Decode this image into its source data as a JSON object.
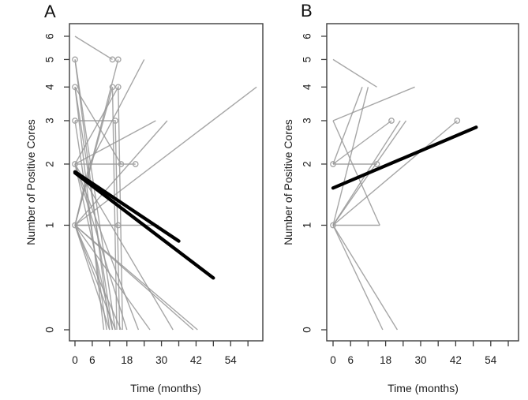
{
  "figure": {
    "background": "#ffffff",
    "colors": {
      "gray_line": "#969696",
      "marker": "#a3a3a3",
      "trend_black": "#000000",
      "axis": "#3d3d3d",
      "text": "#1c1c1c"
    },
    "x_axis": {
      "label": "Time (months)",
      "ticks": [
        0,
        6,
        12,
        18,
        24,
        30,
        36,
        42,
        48,
        54,
        60
      ],
      "labeled_ticks": [
        0,
        6,
        18,
        30,
        42,
        54
      ]
    },
    "y_axis": {
      "label": "Number of Positive Cores",
      "ticks": [
        0,
        1,
        2,
        3,
        4,
        5,
        6
      ],
      "scale": "log1p",
      "note": "tick spacing compressed toward top, log(y+1)"
    }
  },
  "chart_data": [
    {
      "panel": "A",
      "type": "line",
      "xlabel": "Time (months)",
      "ylabel": "Number of Positive Cores",
      "xlim": [
        0,
        63
      ],
      "ylim": [
        0,
        6
      ],
      "grid": false,
      "legend": "none",
      "gray_lines": [
        [
          [
            0,
            6
          ],
          [
            13,
            5
          ]
        ],
        [
          [
            0,
            1
          ],
          [
            15,
            5
          ]
        ],
        [
          [
            0,
            1
          ],
          [
            5,
            2
          ],
          [
            24,
            5
          ]
        ],
        [
          [
            0,
            5
          ],
          [
            12,
            0
          ]
        ],
        [
          [
            0,
            5
          ],
          [
            14,
            0
          ]
        ],
        [
          [
            0,
            1
          ],
          [
            13,
            4
          ],
          [
            14.5,
            0
          ]
        ],
        [
          [
            0,
            2
          ],
          [
            15,
            4
          ],
          [
            16.5,
            0
          ]
        ],
        [
          [
            0,
            4
          ],
          [
            10,
            0
          ]
        ],
        [
          [
            0,
            4
          ],
          [
            13,
            0
          ]
        ],
        [
          [
            0,
            4
          ],
          [
            16,
            2
          ]
        ],
        [
          [
            0,
            3
          ],
          [
            14,
            3
          ],
          [
            15.5,
            0
          ]
        ],
        [
          [
            0,
            3
          ],
          [
            11,
            0
          ]
        ],
        [
          [
            0,
            2
          ],
          [
            21,
            2
          ]
        ],
        [
          [
            0,
            2
          ],
          [
            13,
            0
          ]
        ],
        [
          [
            0,
            2
          ],
          [
            18,
            0
          ]
        ],
        [
          [
            0,
            2
          ],
          [
            22,
            0
          ]
        ],
        [
          [
            0,
            2
          ],
          [
            34,
            0
          ]
        ],
        [
          [
            0,
            2
          ],
          [
            28,
            3
          ]
        ],
        [
          [
            0,
            1
          ],
          [
            32,
            3
          ]
        ],
        [
          [
            0,
            1
          ],
          [
            15,
            1
          ]
        ],
        [
          [
            0,
            1
          ],
          [
            29,
            1
          ]
        ],
        [
          [
            0,
            1
          ],
          [
            12,
            0
          ]
        ],
        [
          [
            0,
            1
          ],
          [
            14,
            0
          ]
        ],
        [
          [
            0,
            1
          ],
          [
            16,
            0
          ]
        ],
        [
          [
            0,
            1
          ],
          [
            26,
            0
          ]
        ],
        [
          [
            0,
            1
          ],
          [
            41,
            0
          ]
        ],
        [
          [
            0,
            1
          ],
          [
            42.5,
            0
          ]
        ],
        [
          [
            0,
            1
          ],
          [
            63,
            4
          ]
        ]
      ],
      "circles": [
        [
          0,
          5
        ],
        [
          13,
          5
        ],
        [
          15,
          5
        ],
        [
          0,
          4
        ],
        [
          13,
          4
        ],
        [
          15,
          4
        ],
        [
          0,
          3
        ],
        [
          14,
          3
        ],
        [
          0,
          2
        ],
        [
          16,
          2
        ],
        [
          21,
          2
        ],
        [
          0,
          1
        ],
        [
          15,
          1
        ]
      ],
      "black_lines": [
        [
          [
            0,
            1.85
          ],
          [
            36,
            0.8
          ]
        ],
        [
          [
            0,
            1.83
          ],
          [
            48,
            0.41
          ]
        ]
      ]
    },
    {
      "panel": "B",
      "type": "line",
      "xlabel": "Time (months)",
      "ylabel": "Number of Positive Cores",
      "xlim": [
        0,
        63
      ],
      "ylim": [
        0,
        6
      ],
      "grid": false,
      "legend": "none",
      "gray_lines": [
        [
          [
            0,
            5
          ],
          [
            15,
            4
          ]
        ],
        [
          [
            0,
            2
          ],
          [
            10,
            4
          ]
        ],
        [
          [
            0,
            1
          ],
          [
            12,
            4
          ]
        ],
        [
          [
            0,
            3
          ],
          [
            28,
            4
          ]
        ],
        [
          [
            0,
            2
          ],
          [
            20,
            3
          ]
        ],
        [
          [
            0,
            1
          ],
          [
            23,
            3
          ]
        ],
        [
          [
            0,
            1
          ],
          [
            25,
            3
          ]
        ],
        [
          [
            0,
            1
          ],
          [
            42.5,
            3
          ]
        ],
        [
          [
            0,
            2
          ],
          [
            15,
            2
          ]
        ],
        [
          [
            0,
            1
          ],
          [
            16,
            1
          ]
        ],
        [
          [
            0,
            3
          ],
          [
            16,
            1
          ]
        ],
        [
          [
            0,
            1
          ],
          [
            17,
            0
          ]
        ],
        [
          [
            0,
            1
          ],
          [
            22,
            0
          ]
        ]
      ],
      "circles": [
        [
          0,
          2
        ],
        [
          0,
          1
        ],
        [
          15,
          2
        ],
        [
          20,
          3
        ],
        [
          42.5,
          3
        ]
      ],
      "black_lines": [
        [
          [
            0,
            1.56
          ],
          [
            49,
            2.83
          ]
        ]
      ]
    }
  ]
}
